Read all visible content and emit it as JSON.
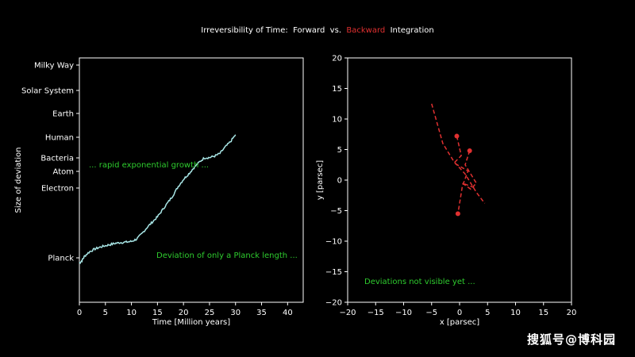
{
  "title": {
    "part1": "Irreversibility of Time:  Forward  vs.",
    "part2": "Backward",
    "part3": "Integration"
  },
  "colors": {
    "background": "#000000",
    "axis": "#ffffff",
    "forward_line": "#a8e6e6",
    "backward_line": "#e03030",
    "annotation": "#2ecc2e"
  },
  "watermark": "搜狐号@博科园",
  "chart_data": [
    {
      "type": "line",
      "xlabel": "Time [Million years]",
      "ylabel": "Size of deviation",
      "xlim": [
        0,
        43
      ],
      "xticks": [
        0,
        5,
        10,
        15,
        20,
        25,
        30,
        35,
        40
      ],
      "yticks": [
        "Planck",
        "Electron",
        "Atom",
        "Bacteria",
        "Human",
        "Earth",
        "Solar System",
        "Milky Way"
      ],
      "y_scale": "log (labeled scales)",
      "annotations": [
        "... rapid exponential growth ...",
        "Deviation of only a Planck length ..."
      ],
      "series": [
        {
          "color": "#a8e6e6",
          "x": [
            0,
            0.5,
            1,
            2,
            3,
            4,
            5,
            6,
            7,
            8,
            9,
            10,
            11,
            12,
            13,
            14,
            15,
            16,
            17,
            18,
            19,
            20,
            21,
            22,
            23,
            24,
            25,
            26,
            27,
            28,
            29,
            30
          ],
          "y_level": [
            -0.3,
            -0.15,
            0.1,
            0.35,
            0.5,
            0.6,
            0.68,
            0.75,
            0.82,
            0.86,
            0.88,
            0.92,
            1.05,
            1.35,
            1.7,
            2.0,
            2.3,
            2.7,
            3.1,
            3.5,
            4.0,
            4.4,
            4.7,
            5.05,
            5.35,
            5.6,
            5.62,
            5.7,
            5.85,
            6.2,
            6.5,
            6.9
          ]
        }
      ]
    },
    {
      "type": "line",
      "xlabel": "x [parsec]",
      "ylabel": "y [parsec]",
      "xlim": [
        -20,
        20
      ],
      "ylim": [
        -20,
        20
      ],
      "xticks": [
        -20,
        -15,
        -10,
        -5,
        0,
        5,
        10,
        15,
        20
      ],
      "yticks": [
        -20,
        -15,
        -10,
        -5,
        0,
        5,
        10,
        15,
        20
      ],
      "annotation": "Deviations not visible yet ...",
      "series": [
        {
          "color": "#e03030",
          "style": "dashed",
          "path_a": [
            [
              -5,
              12.5
            ],
            [
              -3,
              6
            ],
            [
              -1,
              3
            ],
            [
              1,
              1
            ],
            [
              3,
              -2
            ],
            [
              4.5,
              -3.8
            ]
          ],
          "path_b": [
            [
              -0.5,
              7.2
            ],
            [
              0.3,
              4
            ],
            [
              -1,
              2.8
            ],
            [
              1.5,
              1.5
            ],
            [
              0.5,
              -1
            ],
            [
              -0.3,
              -5.5
            ]
          ],
          "path_c": [
            [
              1.8,
              4.8
            ],
            [
              1,
              2.5
            ],
            [
              3,
              -0.5
            ],
            [
              2,
              -1.5
            ],
            [
              0.5,
              -0.5
            ],
            [
              2.8,
              -1.3
            ]
          ],
          "markers": [
            [
              -0.5,
              7.2
            ],
            [
              1.8,
              4.8
            ],
            [
              -0.3,
              -5.5
            ]
          ]
        }
      ]
    }
  ]
}
